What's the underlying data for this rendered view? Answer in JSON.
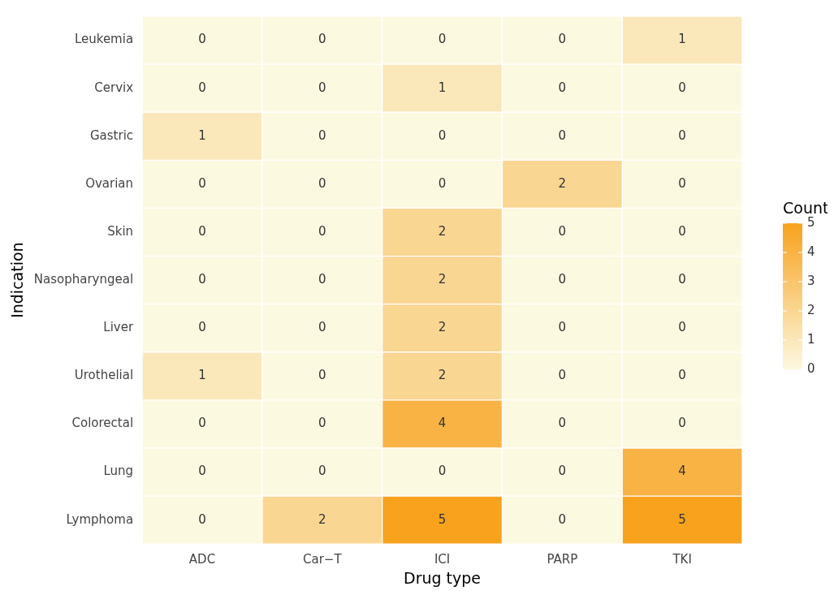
{
  "chart_data": {
    "type": "heatmap",
    "xlabel": "Drug type",
    "ylabel": "Indication",
    "clabel": "Count",
    "categories": [
      "ADC",
      "Car−T",
      "ICI",
      "PARP",
      "TKI"
    ],
    "y_categories": [
      "Leukemia",
      "Cervix",
      "Gastric",
      "Ovarian",
      "Skin",
      "Nasopharyngeal",
      "Liver",
      "Urothelial",
      "Colorectal",
      "Lung",
      "Lymphoma"
    ],
    "cells": [
      [
        0,
        0,
        0,
        0,
        1
      ],
      [
        0,
        0,
        1,
        0,
        0
      ],
      [
        1,
        0,
        0,
        0,
        0
      ],
      [
        0,
        0,
        0,
        2,
        0
      ],
      [
        0,
        0,
        2,
        0,
        0
      ],
      [
        0,
        0,
        2,
        0,
        0
      ],
      [
        0,
        0,
        2,
        0,
        0
      ],
      [
        1,
        0,
        2,
        0,
        0
      ],
      [
        0,
        0,
        4,
        0,
        0
      ],
      [
        0,
        0,
        0,
        0,
        4
      ],
      [
        0,
        2,
        5,
        0,
        5
      ]
    ],
    "colors": [
      "#fcf9e1",
      "#f8a21e"
    ],
    "clim": [
      0,
      5
    ],
    "cticks": [
      0,
      1,
      2,
      3,
      4,
      5
    ],
    "data_labels": true
  }
}
